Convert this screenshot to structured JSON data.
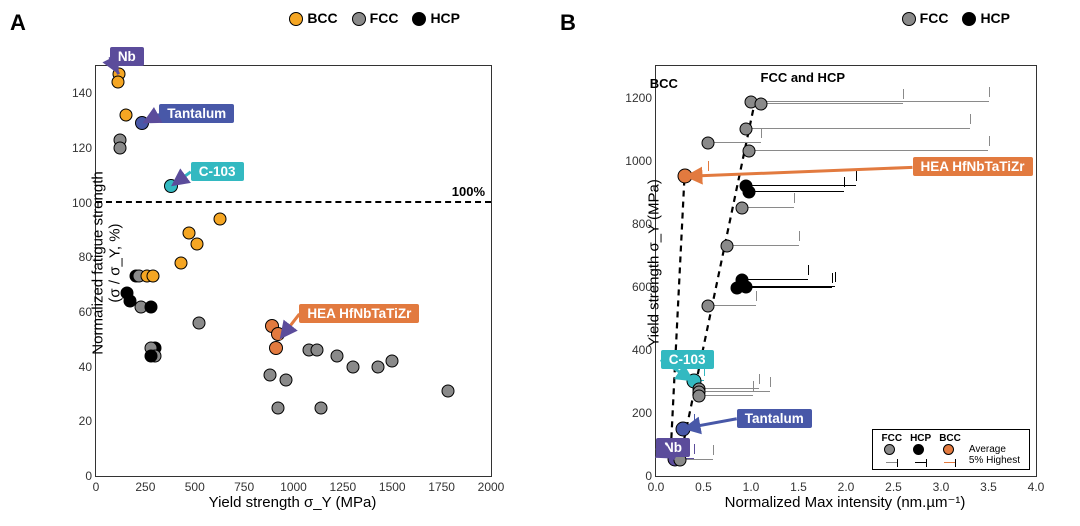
{
  "panelA": {
    "letter": "A",
    "legend": [
      {
        "label": "BCC",
        "color": "#f5a623"
      },
      {
        "label": "FCC",
        "color": "#8a8a8a"
      },
      {
        "label": "HCP",
        "color": "#000000"
      }
    ],
    "x_label": "Yield strength σ_Y (MPa)",
    "y_label_l1": "Normalized fatigue strength",
    "y_label_l2": "(σ / σ_Y, %)",
    "xlim": [
      0,
      2000
    ],
    "ylim": [
      0,
      150
    ],
    "xticks": [
      0,
      250,
      500,
      750,
      1000,
      1250,
      1500,
      1750,
      2000
    ],
    "yticks": [
      0,
      20,
      40,
      60,
      80,
      100,
      120,
      140
    ],
    "hline": {
      "y": 100,
      "label": "100%"
    },
    "annots": [
      {
        "text": "Nb",
        "bg": "#5b4c9b",
        "tx": 70,
        "ty": 150,
        "arrow_to": [
          115,
          147
        ]
      },
      {
        "text": "Tantalum",
        "bg": "#4858a8",
        "tx": 320,
        "ty": 129,
        "arrow_to": [
          235,
          129
        ]
      },
      {
        "text": "C-103",
        "bg": "#33b9c1",
        "tx": 480,
        "ty": 108,
        "arrow_to": [
          380,
          106
        ]
      },
      {
        "text": "HEA HfNbTaTiZr",
        "bg": "#e27a3f",
        "tx": 1030,
        "ty": 56,
        "arrow_to": [
          930,
          50
        ]
      }
    ],
    "points": [
      {
        "x": 115,
        "y": 147,
        "c": "#f5a623"
      },
      {
        "x": 110,
        "y": 144,
        "c": "#f5a623"
      },
      {
        "x": 150,
        "y": 132,
        "c": "#f5a623"
      },
      {
        "x": 235,
        "y": 129,
        "c": "#4858a8",
        "hl": true
      },
      {
        "x": 120,
        "y": 123,
        "c": "#8a8a8a"
      },
      {
        "x": 120,
        "y": 120,
        "c": "#8a8a8a"
      },
      {
        "x": 380,
        "y": 106,
        "c": "#33b9c1",
        "hl": true
      },
      {
        "x": 630,
        "y": 94,
        "c": "#f5a623"
      },
      {
        "x": 470,
        "y": 89,
        "c": "#f5a623"
      },
      {
        "x": 510,
        "y": 85,
        "c": "#f5a623"
      },
      {
        "x": 430,
        "y": 78,
        "c": "#f5a623"
      },
      {
        "x": 200,
        "y": 73,
        "c": "#000000"
      },
      {
        "x": 220,
        "y": 73,
        "c": "#8a8a8a"
      },
      {
        "x": 260,
        "y": 73,
        "c": "#f5a623"
      },
      {
        "x": 290,
        "y": 73,
        "c": "#f5a623"
      },
      {
        "x": 155,
        "y": 67,
        "c": "#000000"
      },
      {
        "x": 170,
        "y": 64,
        "c": "#000000"
      },
      {
        "x": 230,
        "y": 62,
        "c": "#8a8a8a"
      },
      {
        "x": 280,
        "y": 62,
        "c": "#000000"
      },
      {
        "x": 520,
        "y": 56,
        "c": "#8a8a8a"
      },
      {
        "x": 890,
        "y": 55,
        "c": "#e27a3f",
        "hl": true
      },
      {
        "x": 920,
        "y": 52,
        "c": "#e27a3f",
        "hl": true
      },
      {
        "x": 300,
        "y": 47,
        "c": "#000000"
      },
      {
        "x": 280,
        "y": 47,
        "c": "#8a8a8a"
      },
      {
        "x": 300,
        "y": 44,
        "c": "#8a8a8a"
      },
      {
        "x": 910,
        "y": 47,
        "c": "#e27a3f",
        "hl": true
      },
      {
        "x": 280,
        "y": 44,
        "c": "#000000"
      },
      {
        "x": 1080,
        "y": 46,
        "c": "#8a8a8a"
      },
      {
        "x": 1120,
        "y": 46,
        "c": "#8a8a8a"
      },
      {
        "x": 1220,
        "y": 44,
        "c": "#8a8a8a"
      },
      {
        "x": 1300,
        "y": 40,
        "c": "#8a8a8a"
      },
      {
        "x": 1430,
        "y": 40,
        "c": "#8a8a8a"
      },
      {
        "x": 1500,
        "y": 42,
        "c": "#8a8a8a"
      },
      {
        "x": 1780,
        "y": 31,
        "c": "#8a8a8a"
      },
      {
        "x": 960,
        "y": 35,
        "c": "#8a8a8a"
      },
      {
        "x": 880,
        "y": 37,
        "c": "#8a8a8a"
      },
      {
        "x": 920,
        "y": 25,
        "c": "#8a8a8a"
      },
      {
        "x": 1140,
        "y": 25,
        "c": "#8a8a8a"
      }
    ]
  },
  "panelB": {
    "letter": "B",
    "legend": [
      {
        "label": "FCC",
        "color": "#8a8a8a"
      },
      {
        "label": "HCP",
        "color": "#000000"
      }
    ],
    "x_label": "Normalized Max intensity (nm.µm⁻¹)",
    "y_label": "Yield strength σ_Y (MPa)",
    "xlim": [
      0,
      4.0
    ],
    "ylim": [
      0,
      1300
    ],
    "xticks": [
      0,
      0.5,
      1.0,
      1.5,
      2.0,
      2.5,
      3.0,
      3.5,
      4.0
    ],
    "yticks": [
      0,
      200,
      400,
      600,
      800,
      1000,
      1200
    ],
    "top_label_left": "BCC",
    "top_label_right": "FCC and HCP",
    "dashed_lines": [
      {
        "points": [
          [
            0.15,
            50
          ],
          [
            0.3,
            950
          ]
        ]
      },
      {
        "points": [
          [
            0.25,
            50
          ],
          [
            1.05,
            1200
          ]
        ]
      }
    ],
    "annots": [
      {
        "text": "HEA HfNbTaTiZr",
        "bg": "#e27a3f",
        "tx": 2.7,
        "ty": 950,
        "arrow_to": [
          0.3,
          950
        ],
        "arrow_color": "#e27a3f"
      },
      {
        "text": "C-103",
        "bg": "#33b9c1",
        "tx": 0.05,
        "ty": 340,
        "arrow_to": [
          0.4,
          300
        ],
        "arrow_color": "#33b9c1"
      },
      {
        "text": "Tantalum",
        "bg": "#4858a8",
        "tx": 0.85,
        "ty": 153,
        "arrow_to": [
          0.28,
          150
        ],
        "arrow_color": "#4858a8"
      },
      {
        "text": "Nb",
        "bg": "#5b4c9b",
        "tx": 0.0,
        "ty": 60,
        "arrow_to": [
          0.2,
          55
        ],
        "arrow_color": "#5b4c9b"
      }
    ],
    "series": [
      {
        "y": 1185,
        "avg": 1.0,
        "hi": 3.5,
        "c": "#8a8a8a"
      },
      {
        "y": 1180,
        "avg": 1.1,
        "hi": 2.6,
        "c": "#8a8a8a"
      },
      {
        "y": 1100,
        "avg": 0.95,
        "hi": 3.3,
        "c": "#8a8a8a"
      },
      {
        "y": 1055,
        "avg": 0.55,
        "hi": 1.1,
        "c": "#8a8a8a"
      },
      {
        "y": 1030,
        "avg": 0.98,
        "hi": 3.5,
        "c": "#8a8a8a"
      },
      {
        "y": 950,
        "avg": 0.3,
        "hi": 0.55,
        "c": "#e27a3f",
        "big": true
      },
      {
        "y": 918,
        "avg": 0.95,
        "hi": 2.1,
        "c": "#000000"
      },
      {
        "y": 900,
        "avg": 0.98,
        "hi": 1.98,
        "c": "#000000"
      },
      {
        "y": 850,
        "avg": 0.9,
        "hi": 1.45,
        "c": "#8a8a8a"
      },
      {
        "y": 730,
        "avg": 0.75,
        "hi": 1.5,
        "c": "#8a8a8a"
      },
      {
        "y": 620,
        "avg": 0.9,
        "hi": 1.6,
        "c": "#000000"
      },
      {
        "y": 600,
        "avg": 0.95,
        "hi": 1.88,
        "c": "#000000"
      },
      {
        "y": 595,
        "avg": 0.85,
        "hi": 1.85,
        "c": "#000000"
      },
      {
        "y": 540,
        "avg": 0.55,
        "hi": 1.05,
        "c": "#8a8a8a"
      },
      {
        "y": 300,
        "avg": 0.4,
        "hi": 0.5,
        "c": "#33b9c1",
        "big": true
      },
      {
        "y": 275,
        "avg": 0.45,
        "hi": 1.08,
        "c": "#8a8a8a"
      },
      {
        "y": 265,
        "avg": 0.45,
        "hi": 1.2,
        "c": "#8a8a8a"
      },
      {
        "y": 255,
        "avg": 0.45,
        "hi": 1.02,
        "c": "#8a8a8a"
      },
      {
        "y": 150,
        "avg": 0.28,
        "hi": 0.4,
        "c": "#4858a8",
        "big": true
      },
      {
        "y": 55,
        "avg": 0.2,
        "hi": 0.4,
        "c": "#5b4c9b",
        "big": true
      },
      {
        "y": 50,
        "avg": 0.25,
        "hi": 0.6,
        "c": "#8a8a8a"
      }
    ],
    "legend2": {
      "headers": [
        "FCC",
        "HCP",
        "BCC"
      ],
      "row1": "Average",
      "row2": "5% Highest"
    }
  }
}
